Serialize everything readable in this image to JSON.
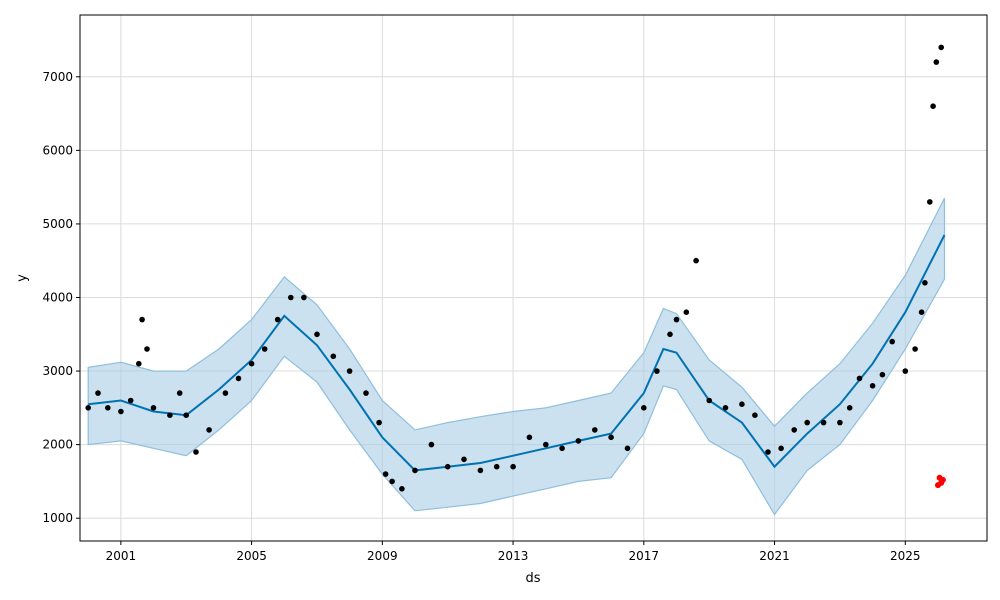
{
  "chart_data": {
    "type": "scatter",
    "xlabel": "ds",
    "ylabel": "y",
    "x_tick_labels": [
      "2001",
      "2005",
      "2009",
      "2013",
      "2017",
      "2021",
      "2025"
    ],
    "x_tick_values": [
      2001,
      2005,
      2009,
      2013,
      2017,
      2021,
      2025
    ],
    "y_tick_labels": [
      "1000",
      "2000",
      "3000",
      "4000",
      "5000",
      "6000",
      "7000"
    ],
    "y_tick_values": [
      1000,
      2000,
      3000,
      4000,
      5000,
      6000,
      7000
    ],
    "xlim": [
      1999.75,
      2027.5
    ],
    "ylim": [
      690,
      7840
    ],
    "grid": true,
    "colors": {
      "observed": "#000000",
      "forecast_line": "#0072B2",
      "interval_fill": "#a9cde4",
      "interval_edge": "#8fbfdc",
      "outlier": "#ff0000",
      "grid": "#dcdcdc"
    },
    "series": [
      {
        "role": "observed",
        "x": [
          2000.0,
          2000.3,
          2000.6,
          2001.0,
          2001.3,
          2001.55,
          2001.65,
          2001.8,
          2002.0,
          2002.5,
          2002.8,
          2003.0,
          2003.3,
          2003.7,
          2004.2,
          2004.6,
          2005.0,
          2005.4,
          2005.8,
          2006.2,
          2006.6,
          2007.0,
          2007.5,
          2008.0,
          2008.5,
          2008.9,
          2009.1,
          2009.3,
          2009.6,
          2010.0,
          2010.5,
          2011.0,
          2011.5,
          2012.0,
          2012.5,
          2013.0,
          2013.5,
          2014.0,
          2014.5,
          2015.0,
          2015.5,
          2016.0,
          2016.5,
          2017.0,
          2017.4,
          2017.8,
          2018.0,
          2018.3,
          2018.6,
          2019.0,
          2019.5,
          2020.0,
          2020.4,
          2020.8,
          2021.2,
          2021.6,
          2022.0,
          2022.5,
          2023.0,
          2023.3,
          2023.6,
          2024.0,
          2024.3,
          2024.6,
          2025.0,
          2025.3,
          2025.5,
          2025.6,
          2025.75,
          2025.85,
          2025.95,
          2026.1
        ],
        "y": [
          2500,
          2700,
          2500,
          2450,
          2600,
          3100,
          3700,
          3300,
          2500,
          2400,
          2700,
          2400,
          1900,
          2200,
          2700,
          2900,
          3100,
          3300,
          3700,
          4000,
          4000,
          3500,
          3200,
          3000,
          2700,
          2300,
          1600,
          1500,
          1400,
          1650,
          2000,
          1700,
          1800,
          1650,
          1700,
          1700,
          2100,
          2000,
          1950,
          2050,
          2200,
          2100,
          1950,
          2500,
          3000,
          3500,
          3700,
          3800,
          4500,
          2600,
          2500,
          2550,
          2400,
          1900,
          1950,
          2200,
          2300,
          2300,
          2300,
          2500,
          2900,
          2800,
          2950,
          3400,
          3000,
          3300,
          3800,
          4200,
          5300,
          6600,
          7200,
          7400
        ]
      },
      {
        "role": "forecast",
        "x": [
          2000.0,
          2001.0,
          2002.0,
          2003.0,
          2004.0,
          2005.0,
          2006.0,
          2007.0,
          2008.0,
          2009.0,
          2010.0,
          2011.0,
          2012.0,
          2013.0,
          2014.0,
          2015.0,
          2016.0,
          2017.0,
          2017.6,
          2018.0,
          2019.0,
          2020.0,
          2021.0,
          2022.0,
          2023.0,
          2024.0,
          2025.0,
          2026.2
        ],
        "y": [
          2550,
          2600,
          2450,
          2400,
          2750,
          3150,
          3750,
          3350,
          2750,
          2100,
          1650,
          1700,
          1750,
          1850,
          1950,
          2050,
          2150,
          2700,
          3300,
          3250,
          2600,
          2300,
          1700,
          2150,
          2550,
          3100,
          3800,
          4850
        ]
      },
      {
        "role": "interval_upper",
        "x": [
          2000.0,
          2001.0,
          2002.0,
          2003.0,
          2004.0,
          2005.0,
          2006.0,
          2007.0,
          2008.0,
          2009.0,
          2010.0,
          2011.0,
          2012.0,
          2013.0,
          2014.0,
          2015.0,
          2016.0,
          2017.0,
          2017.6,
          2018.0,
          2019.0,
          2020.0,
          2021.0,
          2022.0,
          2023.0,
          2024.0,
          2025.0,
          2026.2
        ],
        "y": [
          3050,
          3120,
          3000,
          3000,
          3300,
          3700,
          4280,
          3900,
          3300,
          2600,
          2200,
          2300,
          2380,
          2450,
          2500,
          2600,
          2700,
          3250,
          3850,
          3780,
          3150,
          2780,
          2250,
          2700,
          3100,
          3650,
          4300,
          5350
        ]
      },
      {
        "role": "interval_lower",
        "x": [
          2000.0,
          2001.0,
          2002.0,
          2003.0,
          2004.0,
          2005.0,
          2006.0,
          2007.0,
          2008.0,
          2009.0,
          2010.0,
          2011.0,
          2012.0,
          2013.0,
          2014.0,
          2015.0,
          2016.0,
          2017.0,
          2017.6,
          2018.0,
          2019.0,
          2020.0,
          2021.0,
          2022.0,
          2023.0,
          2024.0,
          2025.0,
          2026.2
        ],
        "y": [
          2000,
          2050,
          1950,
          1850,
          2200,
          2600,
          3200,
          2850,
          2200,
          1600,
          1100,
          1150,
          1200,
          1300,
          1400,
          1500,
          1550,
          2150,
          2800,
          2750,
          2050,
          1800,
          1050,
          1650,
          2000,
          2600,
          3300,
          4250
        ]
      },
      {
        "role": "outliers",
        "x": [
          2026.0,
          2026.05,
          2026.1,
          2026.15
        ],
        "y": [
          1450,
          1550,
          1480,
          1520
        ]
      }
    ]
  }
}
